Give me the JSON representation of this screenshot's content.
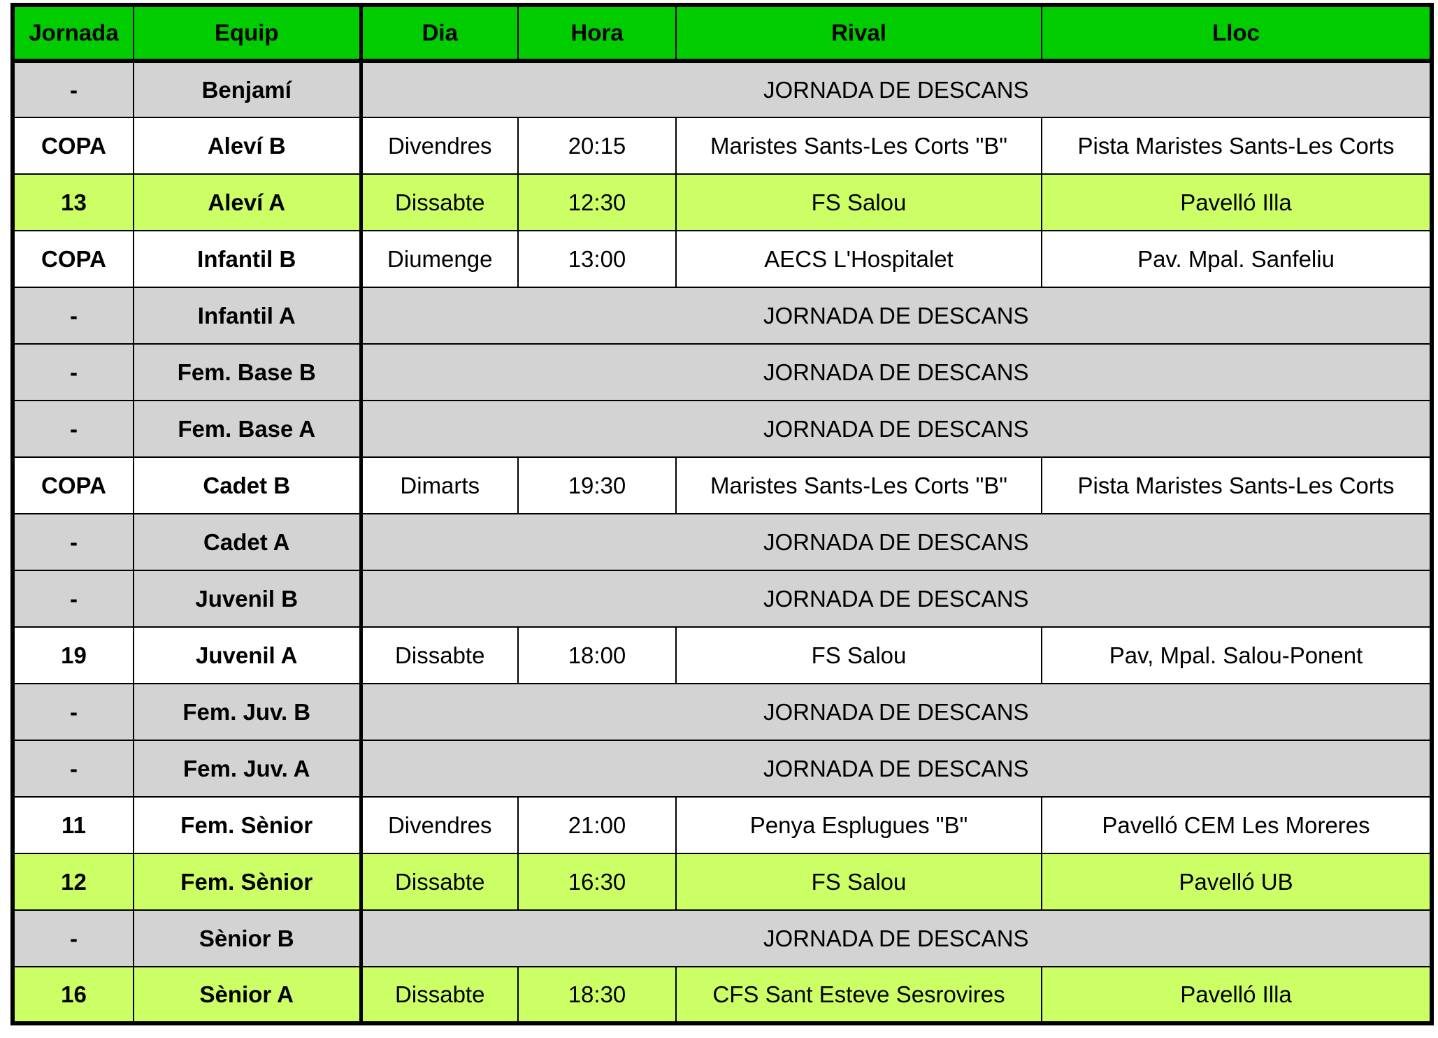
{
  "colors": {
    "header": "#00cc00",
    "rest_row": "#d3d3d3",
    "highlight_row": "#ccff66",
    "normal_row": "#ffffff"
  },
  "headers": [
    "Jornada",
    "Equip",
    "Dia",
    "Hora",
    "Rival",
    "Lloc"
  ],
  "rows": [
    {
      "jornada": "-",
      "equip": "Benjamí",
      "rest": "JORNADA DE DESCANS"
    },
    {
      "jornada": "COPA",
      "equip": "Aleví  B",
      "dia": "Divendres",
      "hora": "20:15",
      "rival": "Maristes Sants-Les Corts \"B\"",
      "lloc": "Pista Maristes Sants-Les Corts"
    },
    {
      "jornada": "13",
      "equip": "Aleví A",
      "dia": "Dissabte",
      "hora": "12:30",
      "rival": "FS Salou",
      "lloc": "Pavelló Illa",
      "highlight": true
    },
    {
      "jornada": "COPA",
      "equip": "Infantil B",
      "dia": "Diumenge",
      "hora": "13:00",
      "rival": "AECS L'Hospitalet",
      "lloc": "Pav. Mpal. Sanfeliu"
    },
    {
      "jornada": "-",
      "equip": "Infantil A",
      "rest": "JORNADA DE DESCANS"
    },
    {
      "jornada": "-",
      "equip": "Fem. Base B",
      "rest": "JORNADA DE DESCANS"
    },
    {
      "jornada": "-",
      "equip": "Fem. Base A",
      "rest": "JORNADA DE DESCANS"
    },
    {
      "jornada": "COPA",
      "equip": "Cadet B",
      "dia": "Dimarts",
      "hora": "19:30",
      "rival": "Maristes Sants-Les Corts \"B\"",
      "lloc": "Pista Maristes Sants-Les Corts"
    },
    {
      "jornada": "-",
      "equip": "Cadet A",
      "rest": "JORNADA DE DESCANS"
    },
    {
      "jornada": "-",
      "equip": "Juvenil B",
      "rest": "JORNADA DE DESCANS"
    },
    {
      "jornada": "19",
      "equip": "Juvenil A",
      "dia": "Dissabte",
      "hora": "18:00",
      "rival": "FS Salou",
      "lloc": "Pav, Mpal. Salou-Ponent"
    },
    {
      "jornada": "-",
      "equip": "Fem. Juv. B",
      "rest": "JORNADA DE DESCANS"
    },
    {
      "jornada": "-",
      "equip": "Fem. Juv. A",
      "rest": "JORNADA DE DESCANS"
    },
    {
      "jornada": "11",
      "equip": "Fem. Sènior",
      "dia": "Divendres",
      "hora": "21:00",
      "rival": "Penya Esplugues \"B\"",
      "lloc": "Pavelló CEM Les Moreres"
    },
    {
      "jornada": "12",
      "equip": "Fem. Sènior",
      "dia": "Dissabte",
      "hora": "16:30",
      "rival": "FS Salou",
      "lloc": "Pavelló UB",
      "highlight": true
    },
    {
      "jornada": "-",
      "equip": "Sènior B",
      "rest": "JORNADA DE DESCANS"
    },
    {
      "jornada": "16",
      "equip": "Sènior A",
      "dia": "Dissabte",
      "hora": "18:30",
      "rival": "CFS Sant Esteve Sesrovires",
      "lloc": "Pavelló Illa",
      "highlight": true
    }
  ]
}
